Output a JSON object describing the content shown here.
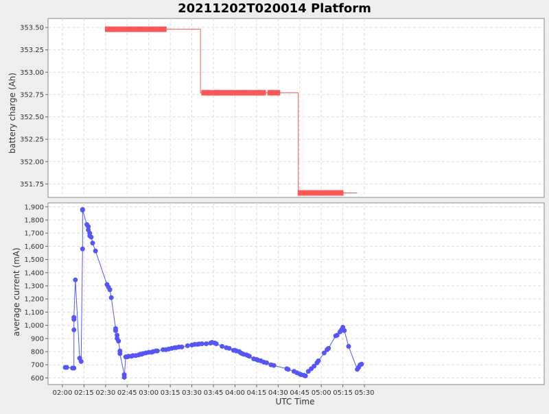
{
  "chart_data": [
    {
      "type": "scatter",
      "title": "20211202T020014 Platform",
      "xlabel": "UTC Time",
      "ylabel": "battery charge (Ah)",
      "x_ticks": [
        "02:00",
        "02:15",
        "02:30",
        "02:45",
        "03:00",
        "03:15",
        "03:30",
        "03:45",
        "04:00",
        "04:15",
        "04:30",
        "04:45",
        "05:00",
        "05:15",
        "05:30"
      ],
      "ylim": [
        351.6,
        353.6
      ],
      "y_ticks": [
        351.75,
        352.0,
        352.25,
        352.5,
        352.75,
        353.0,
        353.25,
        353.5
      ],
      "y_tick_labels": [
        "351.75",
        "352.00",
        "352.25",
        "352.50",
        "352.75",
        "353.00",
        "353.25",
        "353.50"
      ],
      "grid": true,
      "color": "#ff5555",
      "series": [
        {
          "segments": [
            {
              "y": 353.48,
              "x": [
                "02:31",
                "02:35"
              ]
            },
            {
              "y": 353.48,
              "x": [
                "02:36",
                "02:40"
              ]
            },
            {
              "y": 353.48,
              "x": [
                "02:41",
                "02:50"
              ]
            },
            {
              "y": 353.48,
              "x": [
                "02:52",
                "02:56"
              ]
            },
            {
              "y": 353.48,
              "x": [
                "02:58",
                "03:06"
              ]
            },
            {
              "y": 353.48,
              "x": [
                "03:08",
                "03:11"
              ]
            },
            {
              "y": 352.77,
              "x": [
                "03:38",
                "03:41"
              ]
            },
            {
              "y": 352.77,
              "x": [
                "03:42",
                "03:46"
              ]
            },
            {
              "y": 352.77,
              "x": [
                "03:47",
                "03:48"
              ]
            },
            {
              "y": 352.77,
              "x": [
                "03:49",
                "03:57"
              ]
            },
            {
              "y": 352.77,
              "x": [
                "03:58",
                "04:01"
              ]
            },
            {
              "y": 352.77,
              "x": [
                "04:03",
                "04:07"
              ]
            },
            {
              "y": 352.77,
              "x": [
                "04:09",
                "04:13"
              ]
            },
            {
              "y": 352.77,
              "x": [
                "04:15",
                "04:16"
              ]
            },
            {
              "y": 352.77,
              "x": [
                "04:17",
                "04:20"
              ]
            },
            {
              "y": 352.77,
              "x": [
                "04:24",
                "04:26"
              ]
            },
            {
              "y": 352.77,
              "x": [
                "04:28",
                "04:30"
              ]
            },
            {
              "y": 351.65,
              "x": [
                "04:45",
                "04:46"
              ]
            },
            {
              "y": 351.65,
              "x": [
                "04:48",
                "04:50"
              ]
            },
            {
              "y": 351.65,
              "x": [
                "04:51",
                "04:55"
              ]
            },
            {
              "y": 351.65,
              "x": [
                "04:57",
                "04:59"
              ]
            },
            {
              "y": 351.65,
              "x": [
                "05:01",
                "05:03"
              ]
            },
            {
              "y": 351.65,
              "x": [
                "05:04",
                "05:05"
              ]
            },
            {
              "y": 351.65,
              "x": [
                "05:07",
                "05:12"
              ]
            },
            {
              "y": 351.65,
              "x": [
                "05:13",
                "05:14"
              ]
            }
          ],
          "path": [
            [
              "02:30",
              353.48
            ],
            [
              "03:36",
              353.48
            ],
            [
              "03:36",
              352.77
            ],
            [
              "04:44",
              352.77
            ],
            [
              "04:44",
              351.65
            ],
            [
              "05:25",
              351.65
            ]
          ]
        }
      ]
    },
    {
      "type": "line",
      "xlabel": "UTC Time",
      "ylabel": "average current (mA)",
      "x_ticks": [
        "02:00",
        "02:15",
        "02:30",
        "02:45",
        "03:00",
        "03:15",
        "03:30",
        "03:45",
        "04:00",
        "04:15",
        "04:30",
        "04:45",
        "05:00",
        "05:15",
        "05:30"
      ],
      "ylim": [
        550,
        1930
      ],
      "y_ticks": [
        600,
        700,
        800,
        900,
        1000,
        1100,
        1200,
        1300,
        1400,
        1500,
        1600,
        1700,
        1800,
        1900
      ],
      "y_tick_labels": [
        "600",
        "700",
        "800",
        "900",
        "1,000",
        "1,100",
        "1,200",
        "1,300",
        "1,400",
        "1,500",
        "1,600",
        "1,700",
        "1,800",
        "1,900"
      ],
      "grid": true,
      "color": "#5555ff",
      "series": [
        {
          "points": [
            [
              "02:02",
              680
            ],
            [
              "02:03",
              680
            ],
            [
              "02:07",
              675
            ],
            [
              "02:08",
              675
            ],
            [
              "02:08",
              965
            ],
            [
              "02:08",
              1045
            ],
            [
              "02:08",
              1060
            ],
            [
              "02:09",
              1345
            ],
            [
              "02:12",
              750
            ],
            [
              "02:13",
              725
            ],
            [
              "02:14",
              1580
            ],
            [
              "02:14",
              1880
            ],
            [
              "02:14",
              1875
            ],
            [
              "02:17",
              1765
            ],
            [
              "02:18",
              1750
            ],
            [
              "02:18",
              1725
            ],
            [
              "02:19",
              1700
            ],
            [
              "02:19",
              1680
            ],
            [
              "02:20",
              1670
            ],
            [
              "02:21",
              1625
            ],
            [
              "02:23",
              1565
            ],
            [
              "02:31",
              1310
            ],
            [
              "02:32",
              1290
            ],
            [
              "02:33",
              1270
            ],
            [
              "02:34",
              1210
            ],
            [
              "02:37",
              975
            ],
            [
              "02:37",
              960
            ],
            [
              "02:38",
              925
            ],
            [
              "02:38",
              900
            ],
            [
              "02:39",
              880
            ],
            [
              "02:40",
              805
            ],
            [
              "02:40",
              785
            ],
            [
              "02:43",
              625
            ],
            [
              "02:43",
              605
            ],
            [
              "02:44",
              760
            ],
            [
              "02:45",
              760
            ],
            [
              "02:46",
              765
            ],
            [
              "02:48",
              765
            ],
            [
              "02:49",
              770
            ],
            [
              "02:51",
              770
            ],
            [
              "02:53",
              775
            ],
            [
              "02:54",
              780
            ],
            [
              "02:55",
              780
            ],
            [
              "02:56",
              785
            ],
            [
              "02:58",
              790
            ],
            [
              "03:00",
              795
            ],
            [
              "03:02",
              795
            ],
            [
              "03:03",
              800
            ],
            [
              "03:05",
              805
            ],
            [
              "03:06",
              805
            ],
            [
              "03:10",
              815
            ],
            [
              "03:12",
              815
            ],
            [
              "03:14",
              820
            ],
            [
              "03:16",
              825
            ],
            [
              "03:18",
              830
            ],
            [
              "03:19",
              830
            ],
            [
              "03:21",
              835
            ],
            [
              "03:23",
              835
            ],
            [
              "03:27",
              845
            ],
            [
              "03:30",
              850
            ],
            [
              "03:32",
              855
            ],
            [
              "03:34",
              855
            ],
            [
              "03:35",
              858
            ],
            [
              "03:37",
              860
            ],
            [
              "03:40",
              860
            ],
            [
              "03:43",
              865
            ],
            [
              "03:44",
              870
            ],
            [
              "03:46",
              865
            ],
            [
              "03:47",
              860
            ],
            [
              "03:51",
              840
            ],
            [
              "03:54",
              830
            ],
            [
              "03:56",
              825
            ],
            [
              "03:59",
              810
            ],
            [
              "04:00",
              810
            ],
            [
              "04:01",
              805
            ],
            [
              "04:03",
              800
            ],
            [
              "04:04",
              790
            ],
            [
              "04:05",
              785
            ],
            [
              "04:06",
              780
            ],
            [
              "04:08",
              775
            ],
            [
              "04:09",
              770
            ],
            [
              "04:10",
              765
            ],
            [
              "04:13",
              745
            ],
            [
              "04:15",
              740
            ],
            [
              "04:16",
              735
            ],
            [
              "04:18",
              730
            ],
            [
              "04:20",
              720
            ],
            [
              "04:22",
              715
            ],
            [
              "04:25",
              700
            ],
            [
              "04:27",
              695
            ],
            [
              "04:36",
              670
            ],
            [
              "04:37",
              665
            ],
            [
              "04:41",
              650
            ],
            [
              "04:43",
              640
            ],
            [
              "04:45",
              630
            ],
            [
              "04:46",
              625
            ],
            [
              "04:48",
              620
            ],
            [
              "04:49",
              615
            ],
            [
              "04:51",
              650
            ],
            [
              "04:53",
              670
            ],
            [
              "04:55",
              690
            ],
            [
              "04:57",
              715
            ],
            [
              "04:58",
              730
            ],
            [
              "05:02",
              790
            ],
            [
              "05:04",
              815
            ],
            [
              "05:05",
              825
            ],
            [
              "05:10",
              920
            ],
            [
              "05:11",
              925
            ],
            [
              "05:13",
              950
            ],
            [
              "05:14",
              965
            ],
            [
              "05:15",
              985
            ],
            [
              "05:16",
              960
            ],
            [
              "05:19",
              840
            ],
            [
              "05:25",
              665
            ],
            [
              "05:26",
              680
            ],
            [
              "05:27",
              700
            ],
            [
              "05:28",
              705
            ]
          ]
        }
      ]
    }
  ]
}
